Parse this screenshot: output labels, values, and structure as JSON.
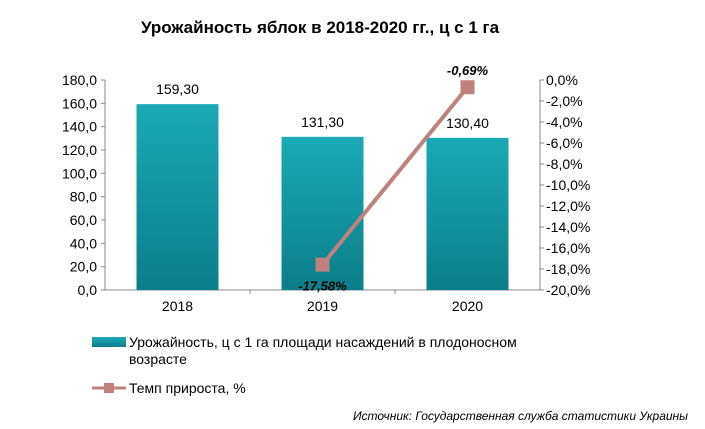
{
  "chart_data": {
    "type": "bar",
    "title": "Урожайность яблок в 2018-2020 гг., ц с 1 га",
    "categories": [
      "2018",
      "2019",
      "2020"
    ],
    "series": [
      {
        "name": "Урожайность,  ц с 1 га площади  насаждений  в плодоносном возрасте",
        "kind": "bar",
        "axis": "left",
        "values": [
          159.3,
          131.3,
          130.4
        ],
        "labels": [
          "159,30",
          "131,30",
          "130,40"
        ],
        "color": "#0f9aa6"
      },
      {
        "name": "Темп прироста, %",
        "kind": "line",
        "axis": "right",
        "values": [
          null,
          -17.58,
          -0.69
        ],
        "labels": [
          null,
          "-17,58%",
          "-0,69%"
        ],
        "color": "#c0807b"
      }
    ],
    "y_left": {
      "ylim": [
        0,
        180
      ],
      "ticks": [
        "0,0",
        "20,0",
        "40,0",
        "60,0",
        "80,0",
        "100,0",
        "120,0",
        "140,0",
        "160,0",
        "180,0"
      ]
    },
    "y_right": {
      "ylim": [
        -20,
        0
      ],
      "ticks": [
        "-20,0%",
        "-18,0%",
        "-16,0%",
        "-14,0%",
        "-12,0%",
        "-10,0%",
        "-8,0%",
        "-6,0%",
        "-4,0%",
        "-2,0%",
        "0,0%"
      ]
    },
    "legend": {
      "position": "bottom",
      "bar_label_line1": "Урожайность,  ц с 1 га площади  насаждений  в плодоносном",
      "bar_label_line2": "возрасте",
      "line_label": "Темп прироста, %"
    },
    "grid": false
  },
  "source": "Источник: Государственная служба статистики Украины"
}
